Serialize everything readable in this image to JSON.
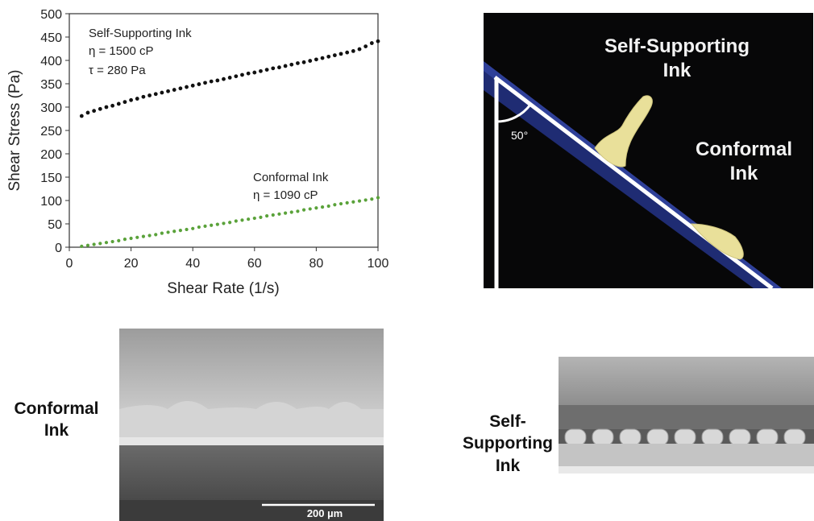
{
  "chart_data": {
    "type": "scatter",
    "xlabel": "Shear Rate (1/s)",
    "ylabel": "Shear Stress (Pa)",
    "xlim": [
      0,
      100
    ],
    "ylim": [
      0,
      500
    ],
    "xticks": [
      "0",
      "20",
      "40",
      "60",
      "80",
      "100"
    ],
    "yticks": [
      "0",
      "50",
      "100",
      "150",
      "200",
      "250",
      "300",
      "350",
      "400",
      "450",
      "500"
    ],
    "grid": false,
    "series": [
      {
        "name": "Self-Supporting Ink",
        "color": "#111111",
        "x": [
          4,
          6,
          8,
          10,
          12,
          14,
          16,
          18,
          20,
          22,
          24,
          26,
          28,
          30,
          32,
          34,
          36,
          38,
          40,
          42,
          44,
          46,
          48,
          50,
          52,
          54,
          56,
          58,
          60,
          62,
          64,
          66,
          68,
          70,
          72,
          74,
          76,
          78,
          80,
          82,
          84,
          86,
          88,
          90,
          92,
          94,
          96,
          98,
          100
        ],
        "y": [
          281,
          288,
          292,
          296,
          300,
          303,
          307,
          311,
          315,
          318,
          322,
          325,
          328,
          331,
          334,
          337,
          340,
          343,
          346,
          349,
          352,
          355,
          357,
          360,
          363,
          366,
          369,
          372,
          374,
          377,
          380,
          383,
          385,
          388,
          391,
          394,
          396,
          399,
          402,
          405,
          408,
          411,
          414,
          417,
          420,
          424,
          430,
          437,
          441
        ]
      },
      {
        "name": "Conformal Ink",
        "color": "#5aa23a",
        "x": [
          4,
          6,
          8,
          10,
          12,
          14,
          16,
          18,
          20,
          22,
          24,
          26,
          28,
          30,
          32,
          34,
          36,
          38,
          40,
          42,
          44,
          46,
          48,
          50,
          52,
          54,
          56,
          58,
          60,
          62,
          64,
          66,
          68,
          70,
          72,
          74,
          76,
          78,
          80,
          82,
          84,
          86,
          88,
          90,
          92,
          94,
          96,
          98,
          100
        ],
        "y": [
          2,
          4,
          6,
          8,
          10,
          12,
          14,
          17,
          19,
          21,
          23,
          25,
          27,
          30,
          32,
          34,
          36,
          38,
          40,
          43,
          45,
          47,
          49,
          51,
          53,
          56,
          58,
          60,
          62,
          64,
          67,
          69,
          71,
          73,
          75,
          77,
          80,
          82,
          84,
          86,
          88,
          91,
          93,
          95,
          97,
          99,
          101,
          103,
          106
        ]
      }
    ],
    "annotations": [
      {
        "lines": [
          "Self-Supporting Ink",
          "η = 1500 cP",
          "τ = 280 Pa"
        ]
      },
      {
        "lines": [
          "Conformal Ink",
          "η = 1090 cP"
        ]
      }
    ]
  },
  "photo": {
    "label_self": "Self-Supporting Ink",
    "label_conformal": "Conformal Ink",
    "angle": "50°"
  },
  "sem": {
    "left_label": "Conformal Ink",
    "right_label": "Self-Supporting Ink",
    "scale_bar": "200 µm"
  },
  "colors": {
    "self_ink_points": "#111111",
    "conformal_ink_points": "#5aa23a",
    "ink_blob": "#e9e09a",
    "photo_background": "#070708",
    "substrate_edge": "#2b3b8f"
  }
}
